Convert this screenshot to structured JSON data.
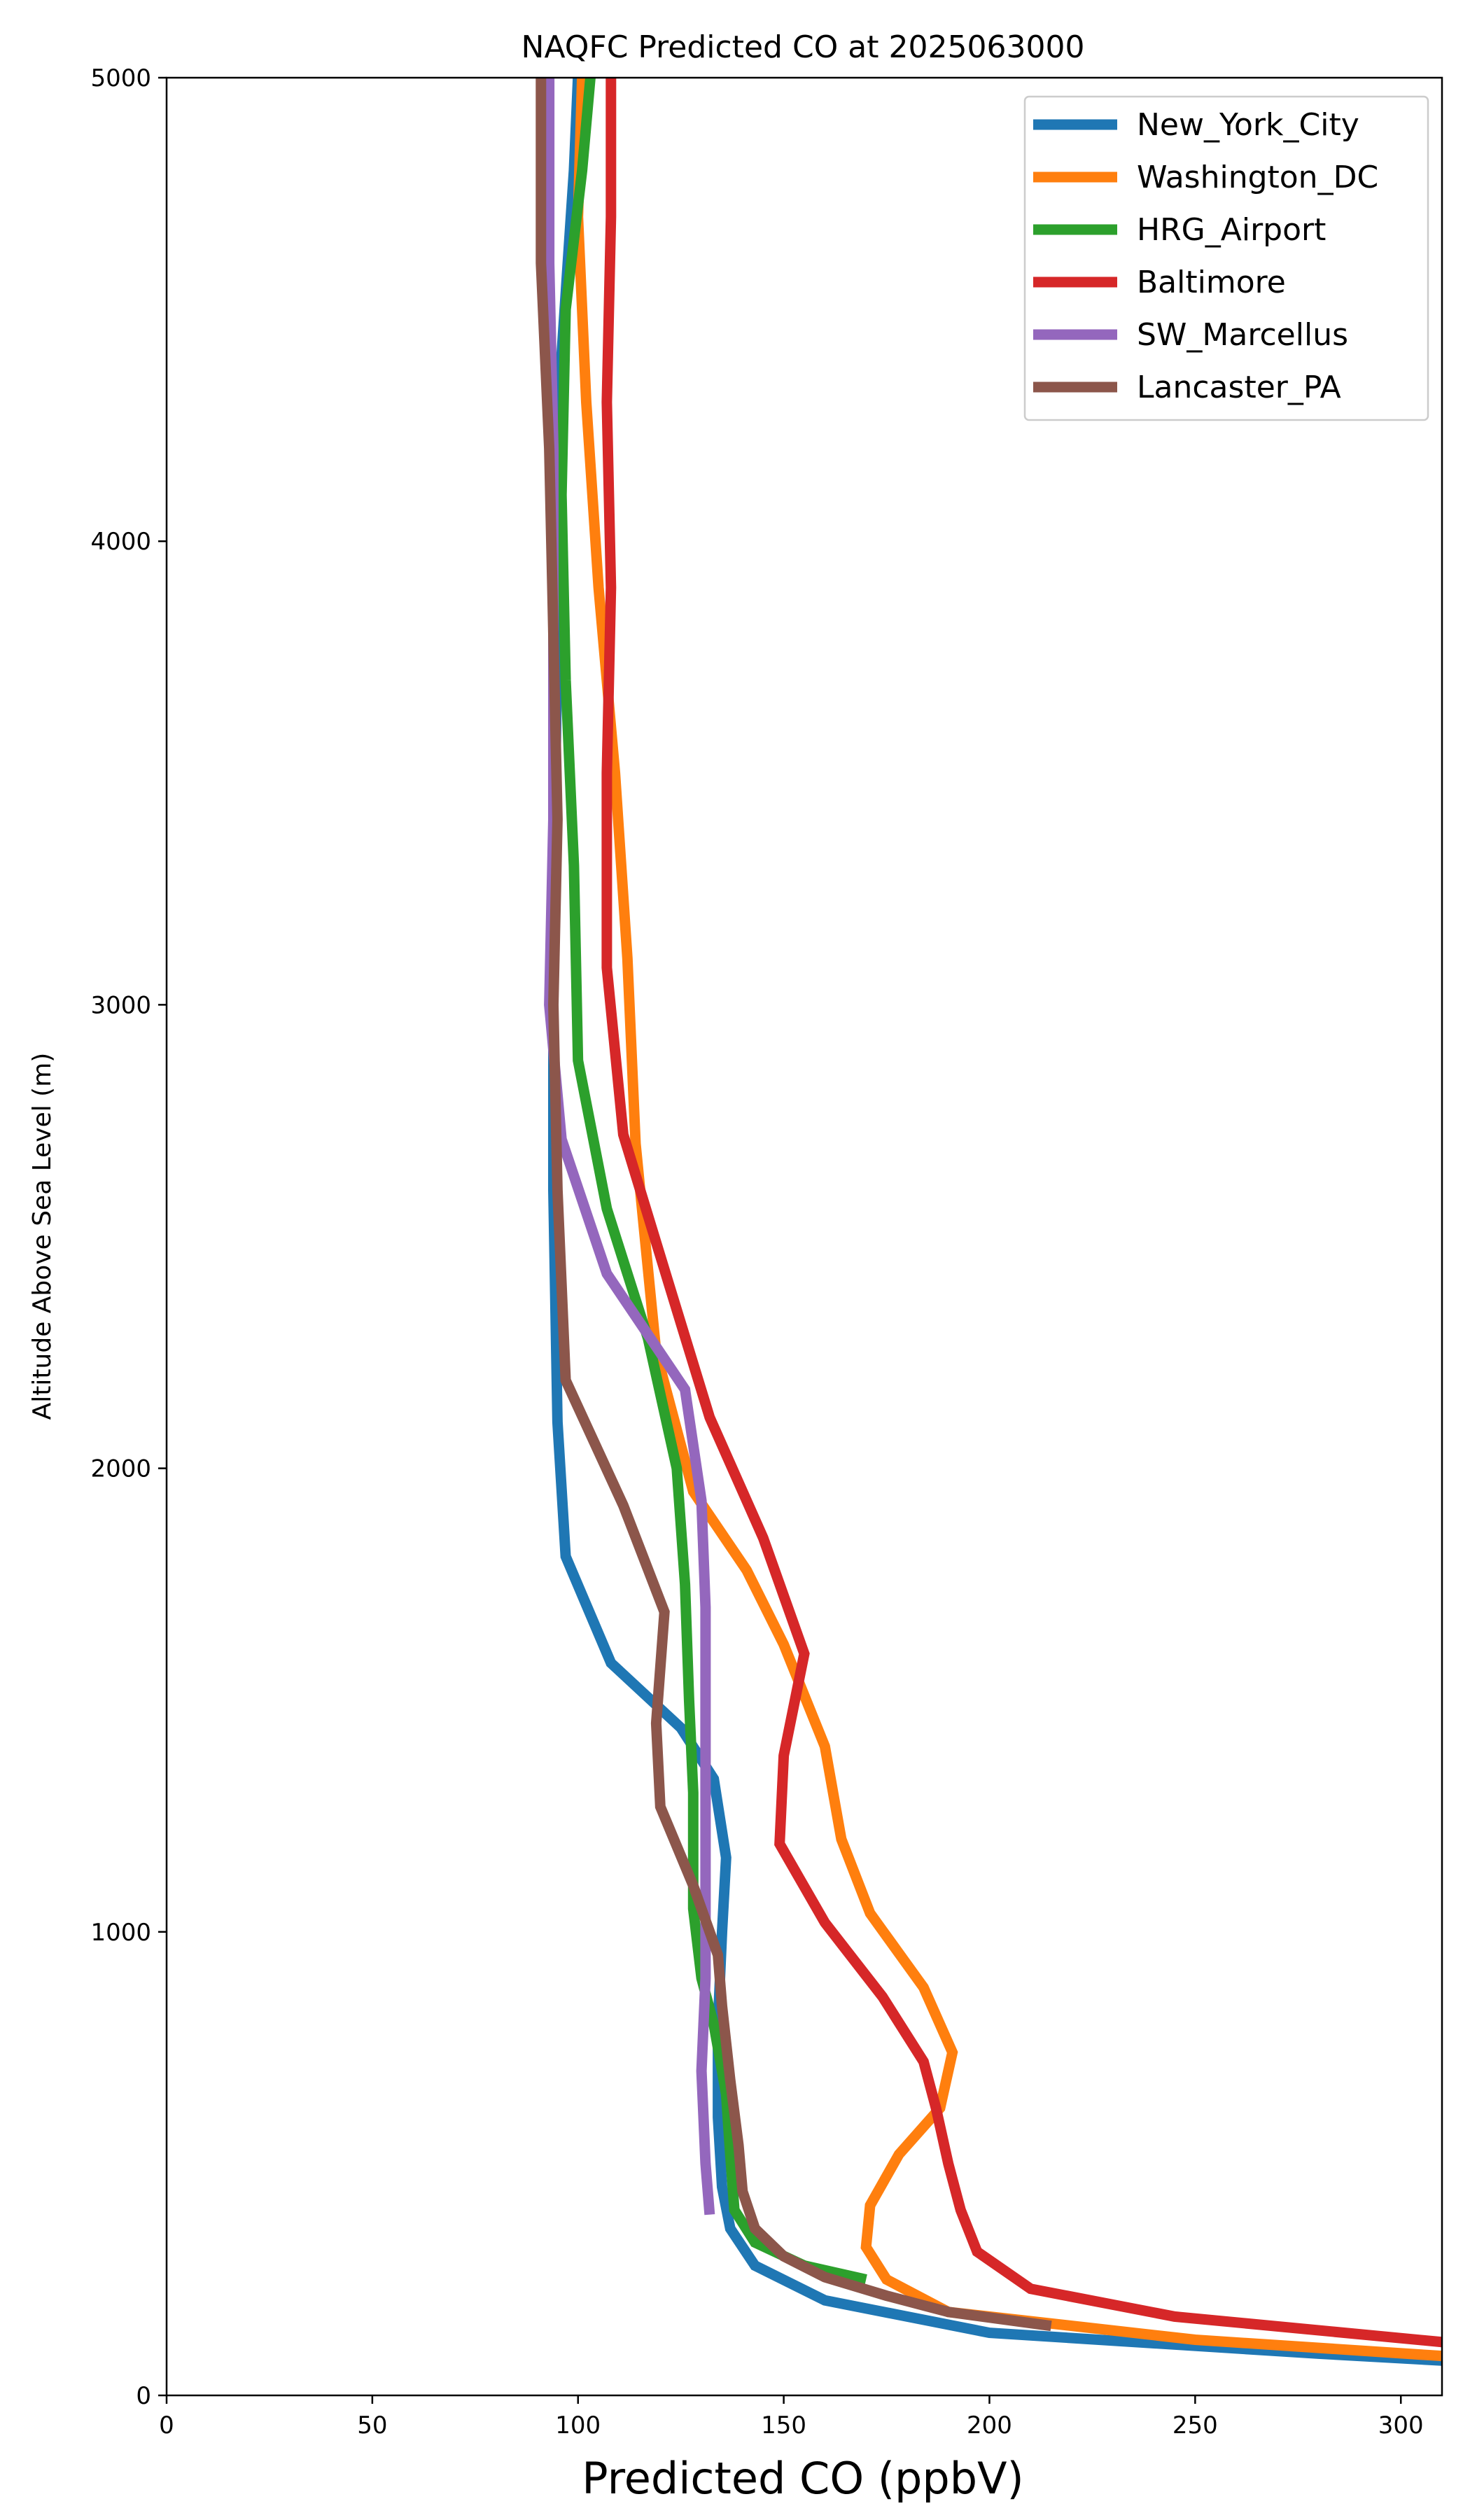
{
  "chart_data": {
    "type": "line",
    "title": "NAQFC Predicted CO at 2025063000",
    "xlabel": "Predicted CO (ppbV)",
    "ylabel": "Altitude Above Sea Level (m)",
    "xlim": [
      0,
      310
    ],
    "ylim": [
      0,
      5000
    ],
    "xticks": [
      0,
      50,
      100,
      150,
      200,
      250,
      300
    ],
    "yticks": [
      0,
      1000,
      2000,
      3000,
      4000,
      5000
    ],
    "grid": false,
    "legend_position": "top-right",
    "series": [
      {
        "name": "New_York_City",
        "color": "#1f77b4",
        "points": [
          [
            310,
            75
          ],
          [
            280,
            90
          ],
          [
            200,
            135
          ],
          [
            160,
            205
          ],
          [
            143,
            280
          ],
          [
            137,
            360
          ],
          [
            135,
            450
          ],
          [
            134,
            600
          ],
          [
            134,
            800
          ],
          [
            135,
            1000
          ],
          [
            136,
            1160
          ],
          [
            133,
            1330
          ],
          [
            125,
            1440
          ],
          [
            108,
            1580
          ],
          [
            97,
            1810
          ],
          [
            95,
            2100
          ],
          [
            94,
            2600
          ],
          [
            94,
            3200
          ],
          [
            95,
            3800
          ],
          [
            96,
            4400
          ],
          [
            99,
            4800
          ],
          [
            100,
            5000
          ]
        ]
      },
      {
        "name": "Washington_DC",
        "color": "#ff7f0e",
        "points": [
          [
            310,
            85
          ],
          [
            250,
            120
          ],
          [
            190,
            180
          ],
          [
            175,
            250
          ],
          [
            170,
            320
          ],
          [
            171,
            410
          ],
          [
            178,
            520
          ],
          [
            188,
            620
          ],
          [
            191,
            740
          ],
          [
            184,
            880
          ],
          [
            171,
            1040
          ],
          [
            164,
            1200
          ],
          [
            160,
            1400
          ],
          [
            150,
            1620
          ],
          [
            141,
            1780
          ],
          [
            128,
            1950
          ],
          [
            119,
            2250
          ],
          [
            114,
            2700
          ],
          [
            112,
            3100
          ],
          [
            109,
            3500
          ],
          [
            105,
            3900
          ],
          [
            102,
            4300
          ],
          [
            100,
            4700
          ],
          [
            101,
            5000
          ]
        ]
      },
      {
        "name": "HRG_Airport",
        "color": "#2ca02c",
        "points": [
          [
            170,
            250
          ],
          [
            155,
            280
          ],
          [
            143,
            330
          ],
          [
            138,
            400
          ],
          [
            137,
            520
          ],
          [
            136,
            650
          ],
          [
            133,
            800
          ],
          [
            130,
            900
          ],
          [
            128,
            1050
          ],
          [
            128,
            1300
          ],
          [
            127,
            1500
          ],
          [
            126,
            1750
          ],
          [
            124,
            2000
          ],
          [
            117,
            2280
          ],
          [
            107,
            2560
          ],
          [
            100,
            2880
          ],
          [
            99,
            3300
          ],
          [
            97,
            3700
          ],
          [
            96,
            4100
          ],
          [
            97,
            4500
          ],
          [
            101,
            4800
          ],
          [
            103,
            5000
          ]
        ]
      },
      {
        "name": "Baltimore",
        "color": "#d62728",
        "points": [
          [
            310,
            115
          ],
          [
            245,
            170
          ],
          [
            210,
            230
          ],
          [
            197,
            310
          ],
          [
            193,
            400
          ],
          [
            190,
            500
          ],
          [
            187,
            620
          ],
          [
            184,
            720
          ],
          [
            174,
            860
          ],
          [
            160,
            1020
          ],
          [
            149,
            1190
          ],
          [
            150,
            1380
          ],
          [
            155,
            1600
          ],
          [
            145,
            1850
          ],
          [
            132,
            2110
          ],
          [
            122,
            2400
          ],
          [
            111,
            2720
          ],
          [
            107,
            3080
          ],
          [
            107,
            3500
          ],
          [
            108,
            3900
          ],
          [
            107,
            4300
          ],
          [
            108,
            4700
          ],
          [
            108,
            5000
          ]
        ]
      },
      {
        "name": "SW_Marcellus",
        "color": "#9467bd",
        "points": [
          [
            132,
            390
          ],
          [
            131,
            500
          ],
          [
            130,
            700
          ],
          [
            131,
            900
          ],
          [
            131,
            1100
          ],
          [
            131,
            1300
          ],
          [
            131,
            1500
          ],
          [
            131,
            1700
          ],
          [
            130,
            1930
          ],
          [
            126,
            2170
          ],
          [
            107,
            2420
          ],
          [
            96,
            2710
          ],
          [
            93,
            3000
          ],
          [
            94,
            3400
          ],
          [
            94,
            3800
          ],
          [
            94,
            4200
          ],
          [
            93,
            4600
          ],
          [
            93,
            5000
          ]
        ]
      },
      {
        "name": "Lancaster_PA",
        "color": "#8c564b",
        "points": [
          [
            215,
            150
          ],
          [
            190,
            180
          ],
          [
            175,
            215
          ],
          [
            160,
            255
          ],
          [
            150,
            300
          ],
          [
            143,
            360
          ],
          [
            140,
            440
          ],
          [
            139,
            540
          ],
          [
            137,
            680
          ],
          [
            135,
            840
          ],
          [
            134,
            950
          ],
          [
            128,
            1100
          ],
          [
            120,
            1270
          ],
          [
            119,
            1450
          ],
          [
            121,
            1690
          ],
          [
            111,
            1920
          ],
          [
            97,
            2190
          ],
          [
            95,
            2600
          ],
          [
            94,
            3000
          ],
          [
            95,
            3400
          ],
          [
            94,
            3800
          ],
          [
            93,
            4200
          ],
          [
            91,
            4600
          ],
          [
            91,
            5000
          ]
        ]
      }
    ]
  }
}
